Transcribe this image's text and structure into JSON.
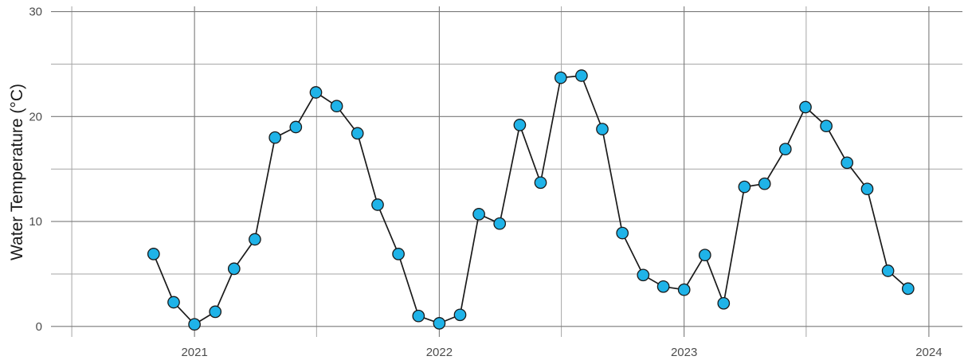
{
  "chart_data": {
    "type": "line",
    "title": "",
    "xlabel": "",
    "ylabel": "Water Temperature (°C)",
    "xlim": [
      "2020-06-01",
      "2024-02-20"
    ],
    "ylim": [
      -1,
      30.5
    ],
    "x_ticks": [
      "2021-01-01",
      "2022-01-01",
      "2023-01-01",
      "2024-01-01"
    ],
    "x_tick_labels": [
      "2021",
      "2022",
      "2023",
      "2024"
    ],
    "x_minor_ticks": [
      "2020-07-02",
      "2021-07-02",
      "2022-07-02",
      "2023-07-02"
    ],
    "y_ticks": [
      0,
      10,
      20,
      30
    ],
    "y_tick_labels": [
      "0",
      "10",
      "20",
      "30"
    ],
    "y_minor_ticks": [
      5,
      15,
      25
    ],
    "grid": true,
    "line_color": "#1a1a1a",
    "marker_color": "#1fb3e8",
    "marker_edge_color": "#1a1a1a",
    "series": [
      {
        "x": [
          "2020-11-01",
          "2020-12-01",
          "2021-01-01",
          "2021-02-01",
          "2021-03-01",
          "2021-04-01",
          "2021-05-01",
          "2021-06-01",
          "2021-07-01",
          "2021-08-01",
          "2021-09-01",
          "2021-10-01",
          "2021-11-01",
          "2021-12-01",
          "2022-01-01",
          "2022-02-01",
          "2022-03-01",
          "2022-04-01",
          "2022-05-01",
          "2022-06-01",
          "2022-07-01",
          "2022-08-01",
          "2022-09-01",
          "2022-10-01",
          "2022-11-01",
          "2022-12-01",
          "2023-01-01",
          "2023-02-01",
          "2023-03-01",
          "2023-04-01",
          "2023-05-01",
          "2023-06-01",
          "2023-07-01",
          "2023-08-01",
          "2023-09-01",
          "2023-10-01",
          "2023-11-01",
          "2023-12-01"
        ],
        "values": [
          6.9,
          2.3,
          0.2,
          1.4,
          5.5,
          8.3,
          18.0,
          19.0,
          22.3,
          21.0,
          18.4,
          11.6,
          6.9,
          1.0,
          0.3,
          1.1,
          10.7,
          9.8,
          19.2,
          13.7,
          23.7,
          23.9,
          18.8,
          8.9,
          4.9,
          3.8,
          3.5,
          6.8,
          2.2,
          13.3,
          13.6,
          16.9,
          20.9,
          19.1,
          15.6,
          13.1,
          5.3,
          3.6
        ]
      }
    ]
  }
}
